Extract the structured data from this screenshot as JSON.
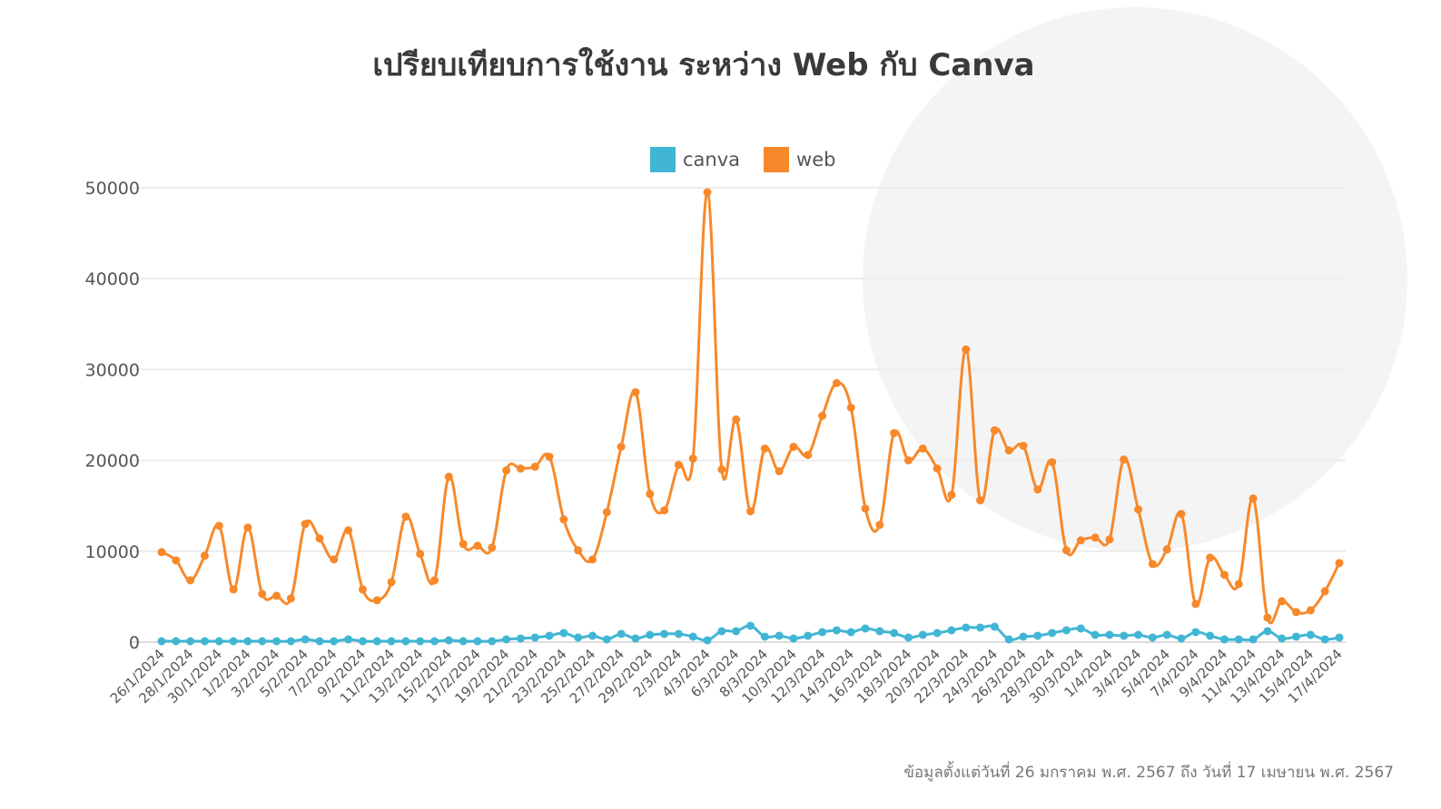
{
  "title": "เปรียบเทียบการใช้งาน ระหว่าง Web กับ Canva",
  "legend": [
    {
      "label": "canva",
      "color": "#41b6d4"
    },
    {
      "label": "web",
      "color": "#f7892a"
    }
  ],
  "footnote": "ข้อมูลตั้งแต่วันที่ 26 มกราคม พ.ศ. 2567 ถึง วันที่ 17 เมษายน พ.ศ. 2567",
  "chart_data": {
    "type": "line",
    "title": "เปรียบเทียบการใช้งาน ระหว่าง Web กับ Canva",
    "xlabel": "",
    "ylabel": "",
    "ylim": [
      0,
      50000
    ],
    "yticks": [
      0,
      10000,
      20000,
      30000,
      40000,
      50000
    ],
    "grid": true,
    "legend_position": "top",
    "x": [
      "26/1/2024",
      "27/1/2024",
      "28/1/2024",
      "29/1/2024",
      "30/1/2024",
      "31/1/2024",
      "1/2/2024",
      "2/2/2024",
      "3/2/2024",
      "4/2/2024",
      "5/2/2024",
      "6/2/2024",
      "7/2/2024",
      "8/2/2024",
      "9/2/2024",
      "10/2/2024",
      "11/2/2024",
      "12/2/2024",
      "13/2/2024",
      "14/2/2024",
      "15/2/2024",
      "16/2/2024",
      "17/2/2024",
      "18/2/2024",
      "19/2/2024",
      "20/2/2024",
      "21/2/2024",
      "22/2/2024",
      "23/2/2024",
      "24/2/2024",
      "25/2/2024",
      "26/2/2024",
      "27/2/2024",
      "28/2/2024",
      "29/2/2024",
      "1/3/2024",
      "2/3/2024",
      "3/3/2024",
      "4/3/2024",
      "5/3/2024",
      "6/3/2024",
      "7/3/2024",
      "8/3/2024",
      "9/3/2024",
      "10/3/2024",
      "11/3/2024",
      "12/3/2024",
      "13/3/2024",
      "14/3/2024",
      "15/3/2024",
      "16/3/2024",
      "17/3/2024",
      "18/3/2024",
      "19/3/2024",
      "20/3/2024",
      "21/3/2024",
      "22/3/2024",
      "23/3/2024",
      "24/3/2024",
      "25/3/2024",
      "26/3/2024",
      "27/3/2024",
      "28/3/2024",
      "29/3/2024",
      "30/3/2024",
      "31/3/2024",
      "1/4/2024",
      "2/4/2024",
      "3/4/2024",
      "4/4/2024",
      "5/4/2024",
      "6/4/2024",
      "7/4/2024",
      "8/4/2024",
      "9/4/2024",
      "10/4/2024",
      "11/4/2024",
      "12/4/2024",
      "13/4/2024",
      "14/4/2024",
      "15/4/2024",
      "16/4/2024",
      "17/4/2024"
    ],
    "x_tick_labels": [
      "26/1/2024",
      "28/1/2024",
      "30/1/2024",
      "1/2/2024",
      "3/2/2024",
      "5/2/2024",
      "7/2/2024",
      "9/2/2024",
      "11/2/2024",
      "13/2/2024",
      "15/2/2024",
      "17/2/2024",
      "19/2/2024",
      "21/2/2024",
      "23/2/2024",
      "25/2/2024",
      "27/2/2024",
      "29/2/2024",
      "2/3/2024",
      "4/3/2024",
      "6/3/2024",
      "8/3/2024",
      "10/3/2024",
      "12/3/2024",
      "14/3/2024",
      "16/3/2024",
      "18/3/2024",
      "20/3/2024",
      "22/3/2024",
      "24/3/2024",
      "26/3/2024",
      "28/3/2024",
      "30/3/2024",
      "1/4/2024",
      "3/4/2024",
      "5/4/2024",
      "7/4/2024",
      "9/4/2024",
      "11/4/2024",
      "13/4/2024",
      "15/4/2024",
      "17/4/2024"
    ],
    "series": [
      {
        "name": "canva",
        "color": "#41b6d4",
        "values": [
          100,
          100,
          100,
          100,
          100,
          100,
          100,
          100,
          100,
          100,
          300,
          100,
          100,
          300,
          100,
          100,
          100,
          100,
          100,
          100,
          200,
          100,
          100,
          100,
          300,
          400,
          500,
          700,
          1000,
          500,
          700,
          300,
          900,
          400,
          800,
          900,
          900,
          600,
          200,
          1200,
          1200,
          1800,
          600,
          700,
          400,
          700,
          1100,
          1300,
          1100,
          1500,
          1200,
          1000,
          500,
          800,
          1000,
          1300,
          1600,
          1600,
          1700,
          300,
          600,
          700,
          1000,
          1300,
          1500,
          800,
          800,
          700,
          800,
          500,
          800,
          400,
          1100,
          700,
          300,
          300,
          300,
          1200,
          400,
          600,
          800,
          300,
          500
        ]
      },
      {
        "name": "web",
        "color": "#f7892a",
        "values": [
          9900,
          9000,
          6800,
          9500,
          12800,
          5800,
          12600,
          5300,
          5100,
          4800,
          13000,
          11400,
          9100,
          12300,
          5800,
          4600,
          6600,
          13800,
          9700,
          6800,
          18200,
          10800,
          10600,
          10400,
          18900,
          19100,
          19300,
          20400,
          13500,
          10100,
          9100,
          14300,
          21500,
          27500,
          16300,
          14500,
          19500,
          20200,
          49500,
          19000,
          24500,
          14400,
          21300,
          18800,
          21500,
          20600,
          24900,
          28500,
          25800,
          14700,
          12900,
          23000,
          20000,
          21300,
          19100,
          16200,
          32200,
          15600,
          23300,
          21100,
          21600,
          16800,
          19800,
          10100,
          11200,
          11500,
          11300,
          20100,
          14600,
          8600,
          10200,
          14100,
          4200,
          9300,
          7400,
          6400,
          15800,
          2700,
          4500,
          3300,
          3500,
          5600,
          8700
        ]
      }
    ]
  }
}
